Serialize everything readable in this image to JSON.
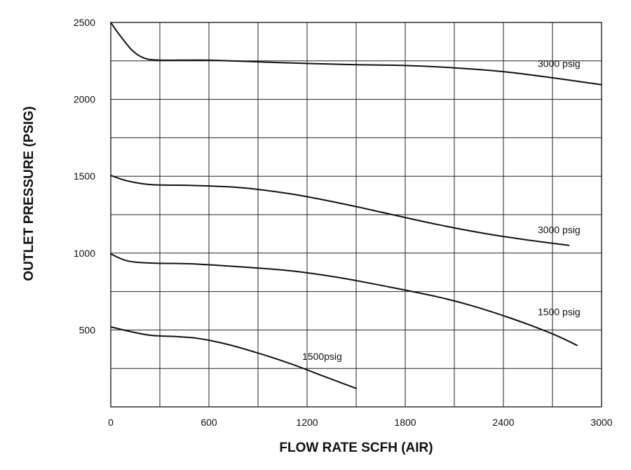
{
  "chart_data": {
    "type": "line",
    "xlabel": "FLOW   RATE   SCFH   (AIR)",
    "ylabel": "OUTLET PRESSURE (PSIG)",
    "xlim": [
      0,
      3000
    ],
    "ylim": [
      0,
      2500
    ],
    "x_ticks": [
      0,
      600,
      1200,
      1800,
      2400,
      3000
    ],
    "x_tick_labels": [
      "0",
      "600",
      "1200",
      "1800",
      "2400",
      "3000"
    ],
    "y_ticks": [
      500,
      1000,
      1500,
      2000,
      2500
    ],
    "y_tick_labels": [
      "500",
      "1000",
      "1500",
      "2000",
      "2500"
    ],
    "grid": true,
    "series": [
      {
        "name": "3000 psig",
        "points": [
          [
            0,
            2500
          ],
          [
            60,
            2410
          ],
          [
            130,
            2320
          ],
          [
            200,
            2270
          ],
          [
            300,
            2255
          ],
          [
            600,
            2255
          ],
          [
            1000,
            2240
          ],
          [
            1500,
            2225
          ],
          [
            1800,
            2220
          ],
          [
            2100,
            2205
          ],
          [
            2400,
            2180
          ],
          [
            2700,
            2140
          ],
          [
            3000,
            2095
          ]
        ]
      },
      {
        "name": "3000 psig",
        "points": [
          [
            0,
            1505
          ],
          [
            100,
            1470
          ],
          [
            250,
            1445
          ],
          [
            500,
            1440
          ],
          [
            800,
            1425
          ],
          [
            1100,
            1385
          ],
          [
            1400,
            1325
          ],
          [
            1700,
            1255
          ],
          [
            2000,
            1185
          ],
          [
            2300,
            1125
          ],
          [
            2550,
            1085
          ],
          [
            2800,
            1050
          ]
        ]
      },
      {
        "name": "1500 psig",
        "points": [
          [
            0,
            995
          ],
          [
            100,
            950
          ],
          [
            250,
            935
          ],
          [
            500,
            930
          ],
          [
            800,
            910
          ],
          [
            1100,
            885
          ],
          [
            1400,
            840
          ],
          [
            1700,
            780
          ],
          [
            2000,
            715
          ],
          [
            2200,
            660
          ],
          [
            2450,
            575
          ],
          [
            2700,
            475
          ],
          [
            2850,
            400
          ]
        ]
      },
      {
        "name": "1500psig",
        "points": [
          [
            0,
            520
          ],
          [
            120,
            490
          ],
          [
            250,
            465
          ],
          [
            500,
            450
          ],
          [
            700,
            410
          ],
          [
            900,
            350
          ],
          [
            1100,
            280
          ],
          [
            1300,
            200
          ],
          [
            1500,
            120
          ]
        ]
      }
    ],
    "annotations": [
      {
        "text": "3000 psig",
        "x": 2610,
        "y": 2210
      },
      {
        "text": "3000 psig",
        "x": 2610,
        "y": 1130
      },
      {
        "text": "1500 psig",
        "x": 2610,
        "y": 595
      },
      {
        "text": "1500psig",
        "x": 1170,
        "y": 305
      }
    ]
  }
}
